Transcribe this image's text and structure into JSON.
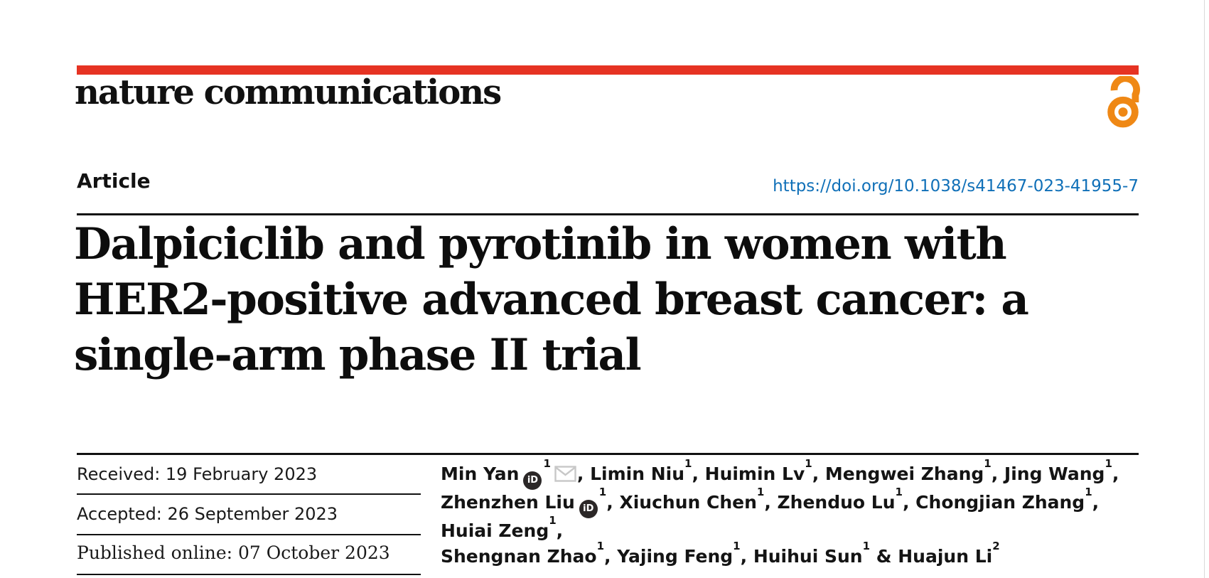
{
  "page": {
    "journal": "nature communications",
    "article_type": "Article",
    "doi": "https://doi.org/10.1038/s41467-023-41955-7",
    "title_lines": [
      "Dalpiciclib and pyrotinib in women with",
      "HER2-positive advanced breast cancer: a",
      "single-arm phase II trial"
    ]
  },
  "dates": {
    "received": "Received: 19 February 2023",
    "accepted": "Accepted: 26 September 2023",
    "published": "Published online: 07 October 2023"
  },
  "authors": {
    "lines": [
      [
        {
          "name": "Min Yan",
          "sup": "1",
          "orcid": true,
          "mail": true,
          "sep": ", "
        },
        {
          "name": "Limin Niu",
          "sup": "1",
          "sep": ", "
        },
        {
          "name": "Huimin Lv",
          "sup": "1",
          "sep": ", "
        },
        {
          "name": "Mengwei Zhang",
          "sup": "1",
          "sep": ", "
        },
        {
          "name": "Jing Wang",
          "sup": "1",
          "sep": ","
        }
      ],
      [
        {
          "name": "Zhenzhen Liu",
          "sup": "1",
          "orcid": true,
          "sep": ", "
        },
        {
          "name": "Xiuchun Chen",
          "sup": "1",
          "sep": ", "
        },
        {
          "name": "Zhenduo Lu",
          "sup": "1",
          "sep": ", "
        },
        {
          "name": "Chongjian Zhang",
          "sup": "1",
          "sep": ", "
        },
        {
          "name": "Huiai Zeng",
          "sup": "1",
          "sep": ","
        }
      ],
      [
        {
          "name": "Shengnan Zhao",
          "sup": "1",
          "sep": ", "
        },
        {
          "name": "Yajing Feng",
          "sup": "1",
          "sep": ", "
        },
        {
          "name": "Huihui Sun",
          "sup": "1",
          "sep": " & "
        },
        {
          "name": "Huajun Li",
          "sup": "2",
          "sep": ""
        }
      ]
    ]
  },
  "icons": {
    "orcid_label": "iD",
    "open_access": "open-access-lock",
    "mail": "envelope"
  },
  "colors": {
    "brand_red": "#e63323",
    "oa_orange": "#ef8815",
    "link_blue": "#1070b8",
    "rule_black": "#111111"
  }
}
